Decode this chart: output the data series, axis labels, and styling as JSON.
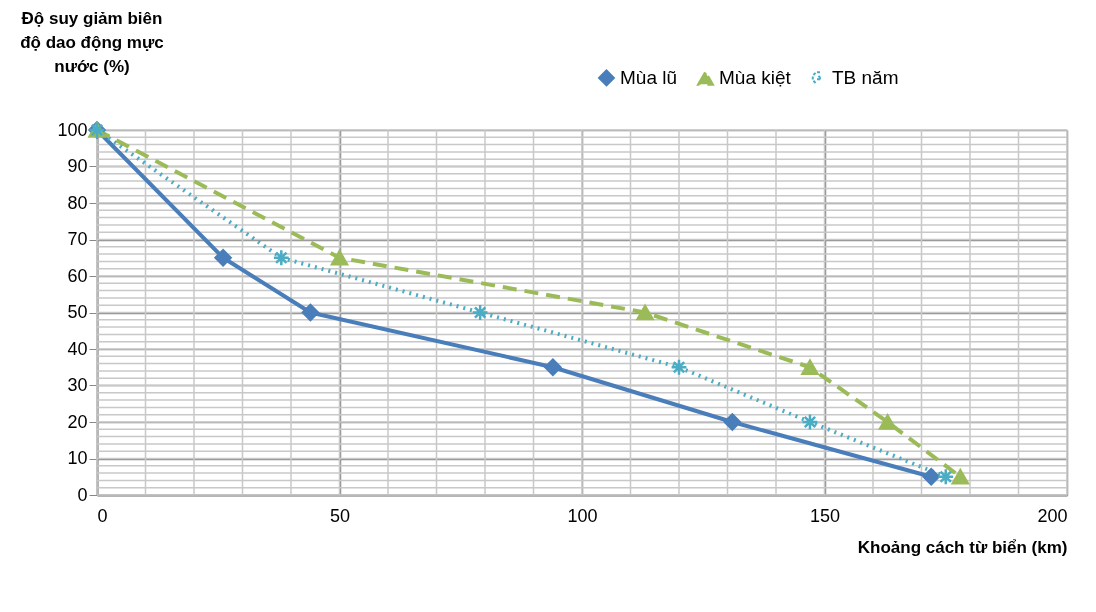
{
  "chart_data": {
    "type": "line",
    "title": "Độ suy giảm biên độ dao động mực nước (%)",
    "xlabel": "Khoảng cách từ biển (km)",
    "xlim": [
      0,
      200
    ],
    "xticks": [
      0,
      50,
      100,
      150,
      200
    ],
    "ylim": [
      0,
      100
    ],
    "yticks": [
      0,
      10,
      20,
      30,
      40,
      50,
      60,
      70,
      80,
      90,
      100
    ],
    "grid": true,
    "legend": "top right",
    "series": [
      {
        "name": "Mùa lũ",
        "color": "#4a7ebb",
        "marker": "diamond",
        "line_style": "solid",
        "x": [
          0,
          26,
          44,
          94,
          131,
          172
        ],
        "values": [
          100,
          65,
          50,
          35,
          20,
          5
        ]
      },
      {
        "name": "Mùa kiệt",
        "color": "#9bbb59",
        "marker": "triangle",
        "line_style": "dashed",
        "x": [
          0,
          50,
          113,
          147,
          163,
          178
        ],
        "values": [
          100,
          65,
          50,
          35,
          20,
          5
        ]
      },
      {
        "name": "TB năm",
        "color": "#4bacc6",
        "marker": "cross",
        "line_style": "dotted",
        "x": [
          0,
          38,
          79,
          120,
          147,
          175
        ],
        "values": [
          100,
          65,
          50,
          35,
          20,
          5
        ]
      }
    ]
  }
}
